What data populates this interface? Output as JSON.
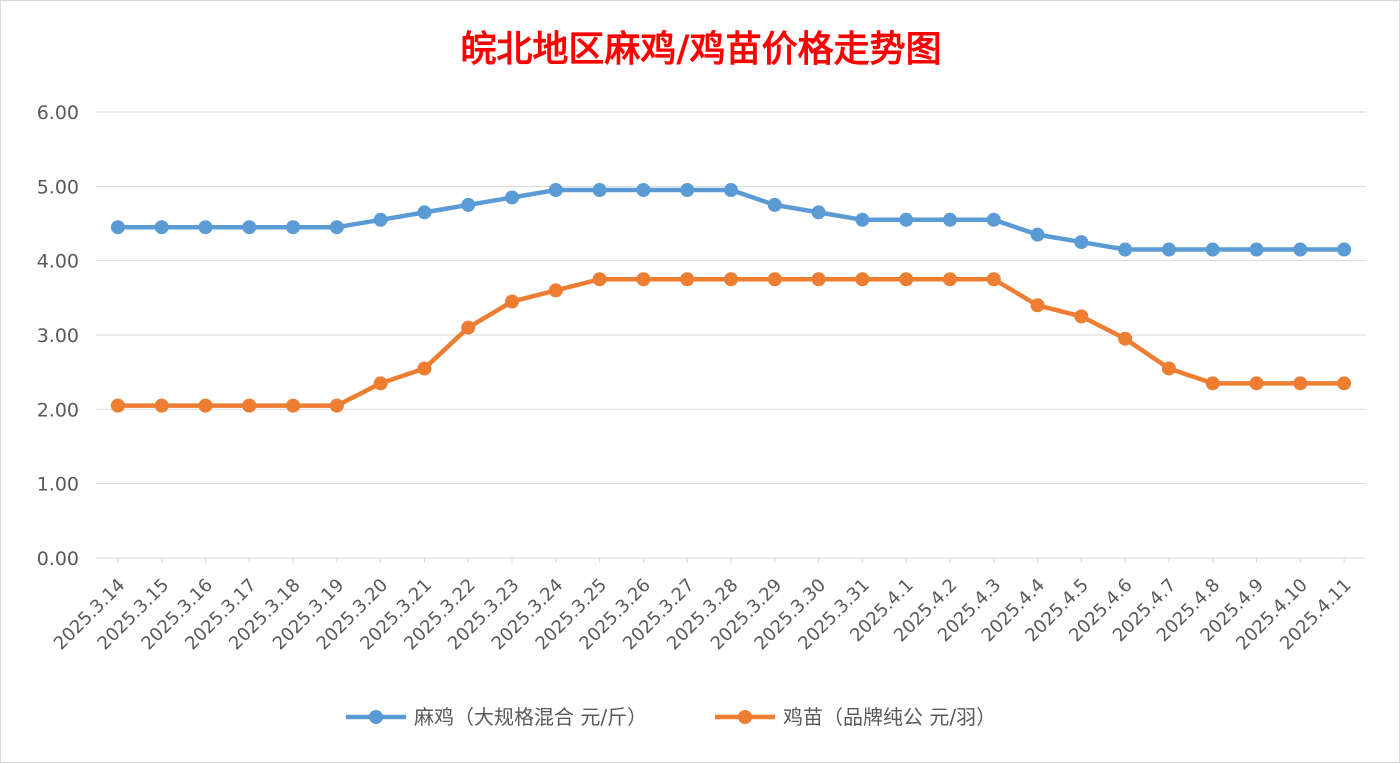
{
  "chart_data": {
    "type": "line",
    "title": "皖北地区麻鸡/鸡苗价格走势图",
    "xlabel": "",
    "ylabel": "",
    "ylim": [
      0,
      6
    ],
    "yticks": [
      "0.00",
      "1.00",
      "2.00",
      "3.00",
      "4.00",
      "5.00",
      "6.00"
    ],
    "grid": true,
    "legend_position": "bottom",
    "categories": [
      "2025.3.14",
      "2025.3.15",
      "2025.3.16",
      "2025.3.17",
      "2025.3.18",
      "2025.3.19",
      "2025.3.20",
      "2025.3.21",
      "2025.3.22",
      "2025.3.23",
      "2025.3.24",
      "2025.3.25",
      "2025.3.26",
      "2025.3.27",
      "2025.3.28",
      "2025.3.29",
      "2025.3.30",
      "2025.3.31",
      "2025.4.1",
      "2025.4.2",
      "2025.4.3",
      "2025.4.4",
      "2025.4.5",
      "2025.4.6",
      "2025.4.7",
      "2025.4.8",
      "2025.4.9",
      "2025.4.10",
      "2025.4.11"
    ],
    "series": [
      {
        "name": "麻鸡（大规格混合 元/斤）",
        "color": "#5b9bd5",
        "values": [
          4.45,
          4.45,
          4.45,
          4.45,
          4.45,
          4.45,
          4.55,
          4.65,
          4.75,
          4.85,
          4.95,
          4.95,
          4.95,
          4.95,
          4.95,
          4.75,
          4.65,
          4.55,
          4.55,
          4.55,
          4.55,
          4.35,
          4.25,
          4.15,
          4.15,
          4.15,
          4.15,
          4.15,
          4.15
        ]
      },
      {
        "name": "鸡苗（品牌纯公 元/羽）",
        "color": "#ed7d31",
        "values": [
          2.05,
          2.05,
          2.05,
          2.05,
          2.05,
          2.05,
          2.35,
          2.55,
          3.1,
          3.45,
          3.6,
          3.75,
          3.75,
          3.75,
          3.75,
          3.75,
          3.75,
          3.75,
          3.75,
          3.75,
          3.75,
          3.4,
          3.25,
          2.95,
          2.55,
          2.35,
          2.35,
          2.35,
          2.35
        ]
      }
    ]
  }
}
